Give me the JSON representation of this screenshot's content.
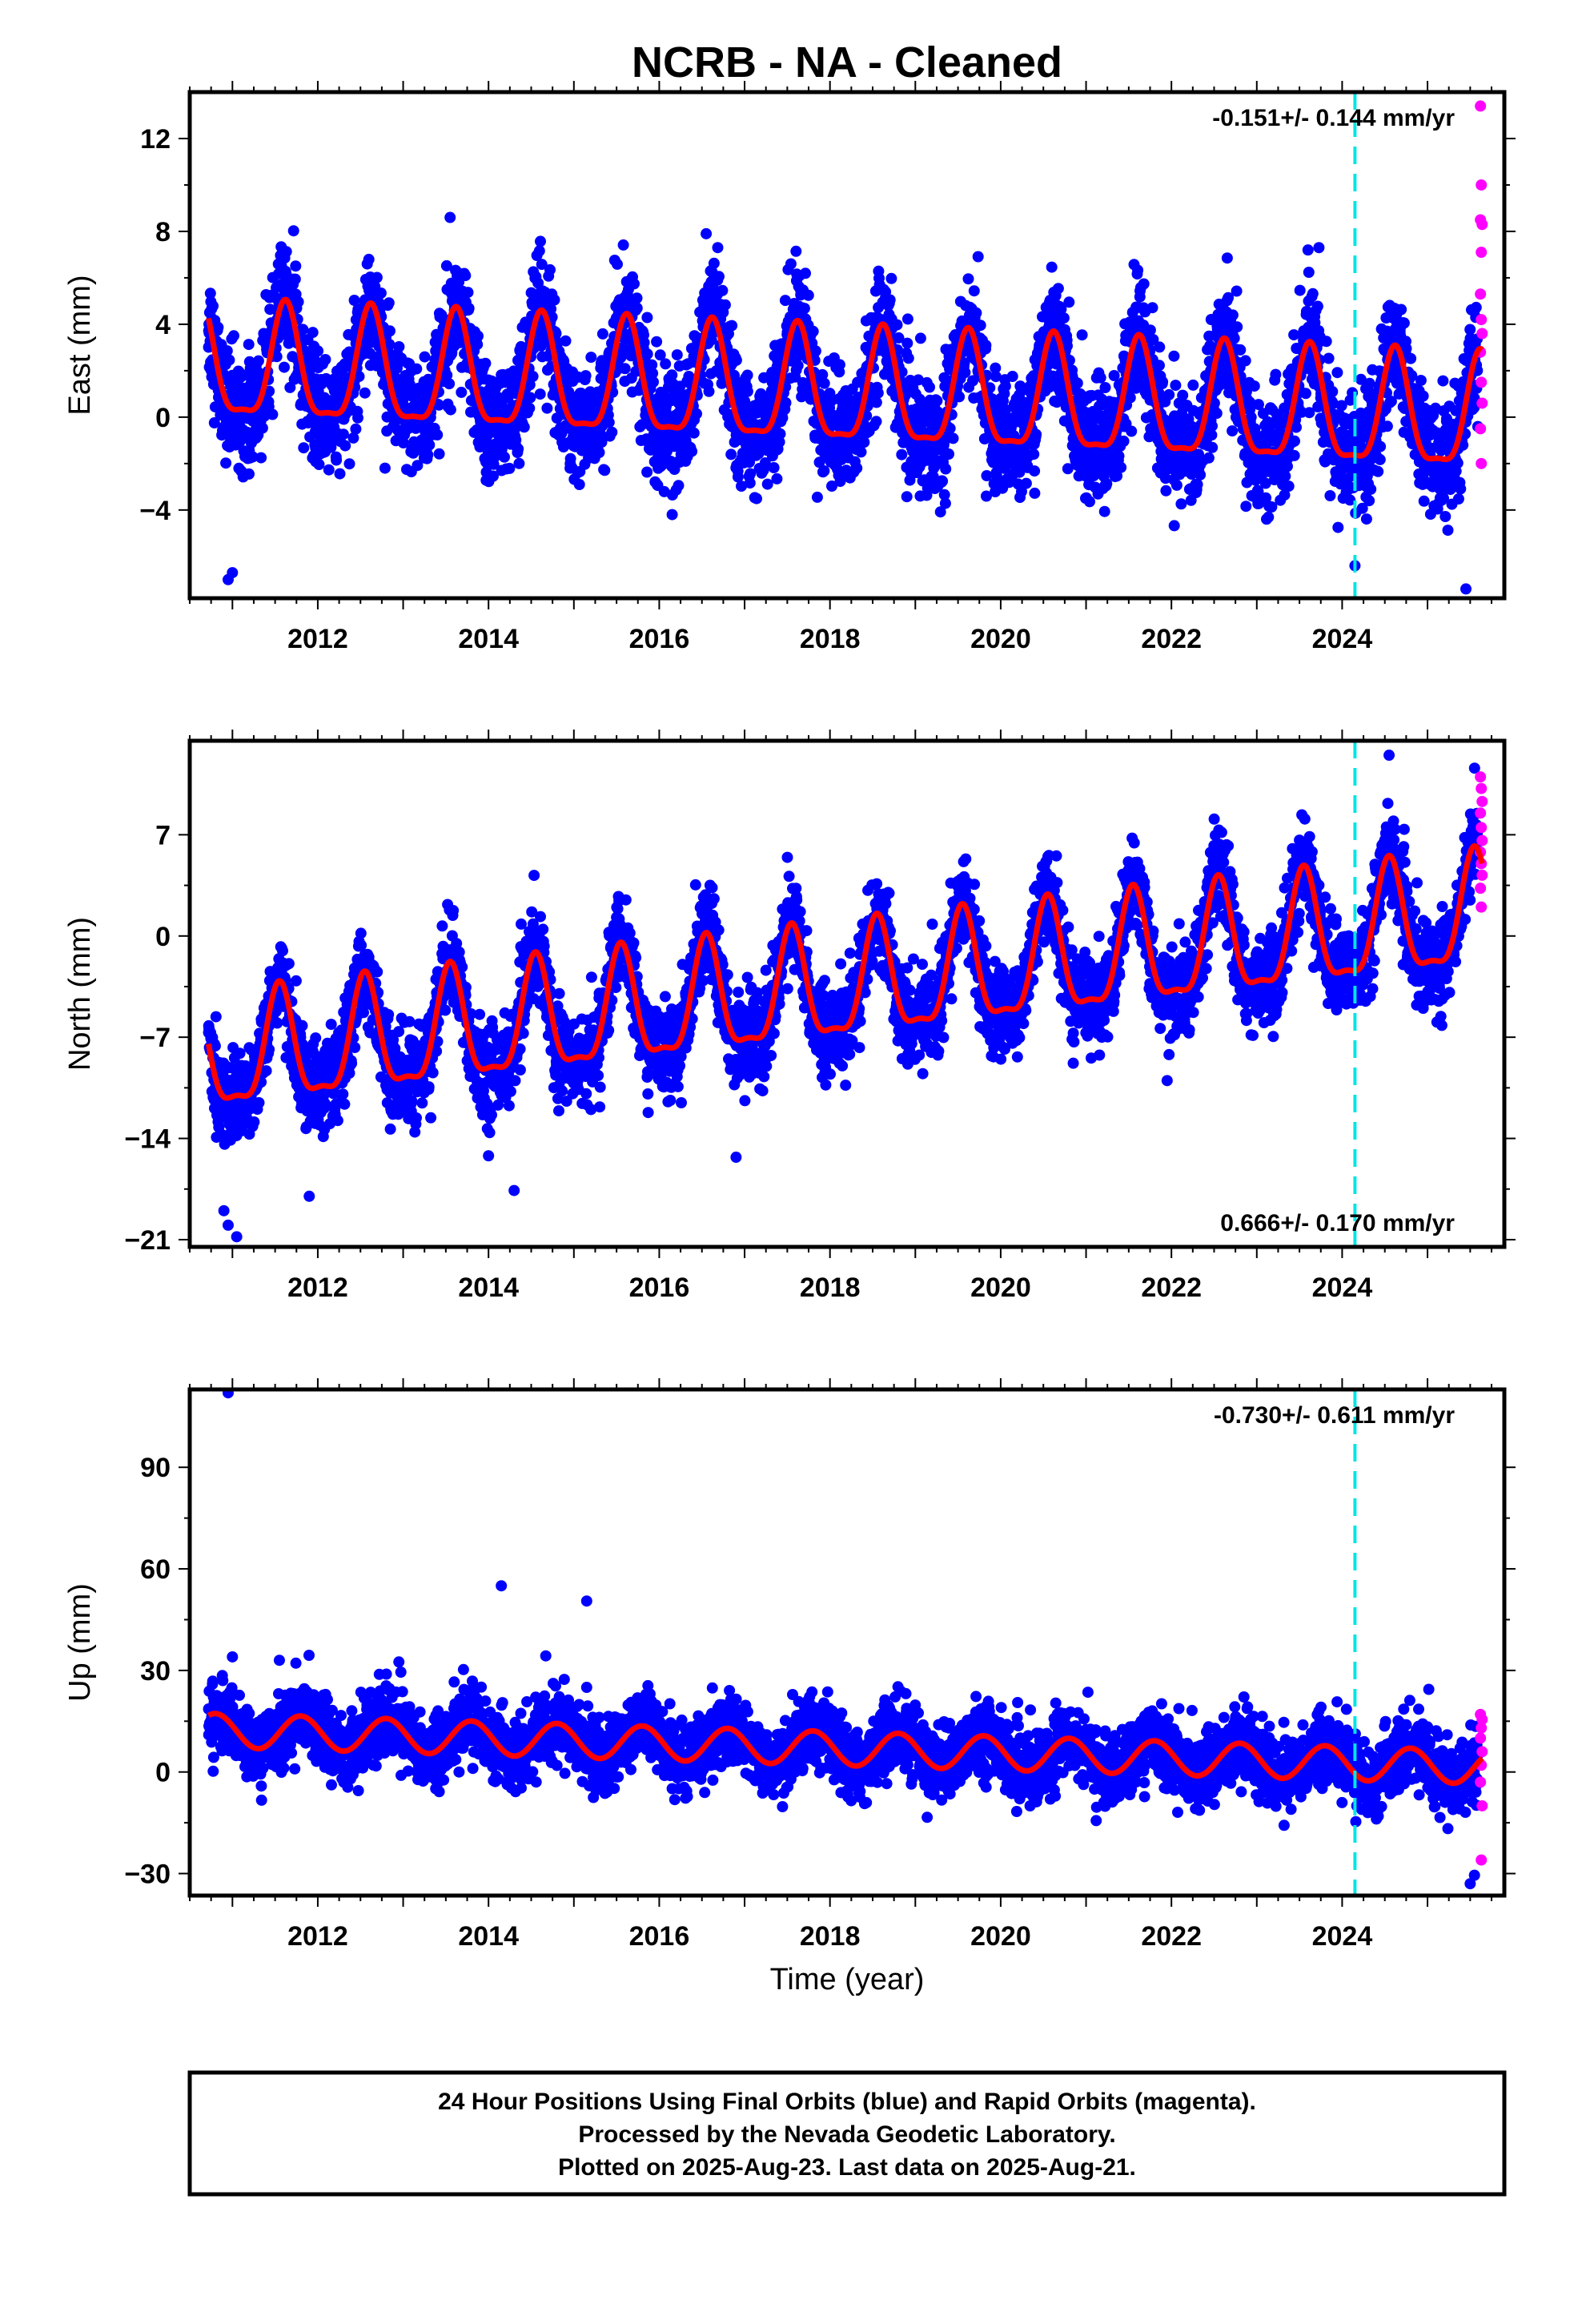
{
  "figure": {
    "title": "NCRB  - NA - Cleaned",
    "caption": [
      "24 Hour Positions Using Final Orbits (blue) and Rapid Orbits (magenta).",
      "Processed by the Nevada Geodetic Laboratory.",
      "Plotted on 2025-Aug-23. Last data on 2025-Aug-21."
    ],
    "colors": {
      "final_orbits": "#0000ff",
      "rapid_orbits": "#ff00ff",
      "model_fit": "#ff0000",
      "event_line": "#00e5e5",
      "frame": "#000000"
    },
    "time_axis_label": "Time (year)"
  },
  "chart_data": [
    {
      "type": "scatter",
      "panel": "east",
      "ylabel": "East (mm)",
      "xlabel": "",
      "xlim": [
        2010.5,
        2025.9
      ],
      "ylim": [
        -7.8,
        14.0
      ],
      "xticks": [
        2012,
        2014,
        2016,
        2018,
        2020,
        2022,
        2024
      ],
      "yticks": [
        -4,
        0,
        4,
        8,
        12
      ],
      "rate_label": "-0.151+/- 0.144 mm/yr",
      "rate_position": "top-right",
      "event_line_x": 2024.15,
      "data_span": [
        2010.72,
        2025.64
      ],
      "rapid_start": 2025.59,
      "fit": {
        "offset": 1.0,
        "trend_mm_per_yr": -0.151,
        "annual_amp": 2.4,
        "semiannual_amp": 0.7,
        "peak_phase_year_frac": 0.62
      },
      "scatter_sigma": 1.2,
      "outliers": [
        {
          "x": 2010.95,
          "y": -7.0
        },
        {
          "x": 2011.0,
          "y": -6.7
        },
        {
          "x": 2013.55,
          "y": 8.6
        },
        {
          "x": 2016.55,
          "y": 7.9
        },
        {
          "x": 2023.6,
          "y": 7.2
        },
        {
          "x": 2025.45,
          "y": -7.4
        },
        {
          "x": 2024.15,
          "y": -6.4
        }
      ],
      "rapid_points": [
        {
          "x": 2025.62,
          "y": 13.4
        },
        {
          "x": 2025.63,
          "y": 10.0
        },
        {
          "x": 2025.62,
          "y": 8.5
        },
        {
          "x": 2025.64,
          "y": 8.3
        },
        {
          "x": 2025.63,
          "y": 7.1
        },
        {
          "x": 2025.62,
          "y": 5.3
        },
        {
          "x": 2025.63,
          "y": 4.2
        },
        {
          "x": 2025.64,
          "y": 3.6
        },
        {
          "x": 2025.62,
          "y": 2.8
        },
        {
          "x": 2025.63,
          "y": 1.5
        },
        {
          "x": 2025.64,
          "y": 0.6
        },
        {
          "x": 2025.62,
          "y": -0.5
        },
        {
          "x": 2025.63,
          "y": -2.0
        }
      ]
    },
    {
      "type": "scatter",
      "panel": "north",
      "ylabel": "North (mm)",
      "xlabel": "",
      "xlim": [
        2010.5,
        2025.9
      ],
      "ylim": [
        -21.5,
        13.5
      ],
      "xticks": [
        2012,
        2014,
        2016,
        2018,
        2020,
        2022,
        2024
      ],
      "yticks": [
        -21,
        -14,
        -7,
        0,
        7
      ],
      "rate_label": "0.666+/- 0.170 mm/yr",
      "rate_position": "bottom-right",
      "event_line_x": 2024.15,
      "data_span": [
        2010.72,
        2025.64
      ],
      "rapid_start": 2025.59,
      "fit": {
        "offset": -3.8,
        "trend_mm_per_yr": 0.666,
        "annual_amp": 3.8,
        "semiannual_amp": 1.2,
        "peak_phase_year_frac": 0.55
      },
      "scatter_sigma": 1.5,
      "outliers": [
        {
          "x": 2010.9,
          "y": -19.0
        },
        {
          "x": 2010.95,
          "y": -20.0
        },
        {
          "x": 2011.05,
          "y": -20.8
        },
        {
          "x": 2011.9,
          "y": -18.0
        },
        {
          "x": 2014.0,
          "y": -15.2
        },
        {
          "x": 2014.3,
          "y": -17.6
        },
        {
          "x": 2016.9,
          "y": -15.3
        },
        {
          "x": 2015.2,
          "y": -12.0
        },
        {
          "x": 2020.85,
          "y": -8.8
        },
        {
          "x": 2021.95,
          "y": -10.0
        },
        {
          "x": 2024.55,
          "y": 12.5
        }
      ],
      "rapid_points": [
        {
          "x": 2025.62,
          "y": 11.0
        },
        {
          "x": 2025.63,
          "y": 10.2
        },
        {
          "x": 2025.64,
          "y": 9.3
        },
        {
          "x": 2025.62,
          "y": 8.5
        },
        {
          "x": 2025.63,
          "y": 7.5
        },
        {
          "x": 2025.64,
          "y": 6.6
        },
        {
          "x": 2025.62,
          "y": 5.8
        },
        {
          "x": 2025.63,
          "y": 5.0
        },
        {
          "x": 2025.64,
          "y": 4.2
        },
        {
          "x": 2025.62,
          "y": 3.3
        },
        {
          "x": 2025.63,
          "y": 2.0
        }
      ]
    },
    {
      "type": "scatter",
      "panel": "up",
      "ylabel": "Up (mm)",
      "xlabel": "Time (year)",
      "xlim": [
        2010.5,
        2025.9
      ],
      "ylim": [
        -36.5,
        113.0
      ],
      "xticks": [
        2012,
        2014,
        2016,
        2018,
        2020,
        2022,
        2024
      ],
      "yticks": [
        -30,
        0,
        30,
        60,
        90
      ],
      "rate_label": "-0.730+/- 0.611 mm/yr",
      "rate_position": "top-right",
      "event_line_x": 2024.15,
      "data_span": [
        2010.72,
        2025.64
      ],
      "rapid_start": 2025.59,
      "fit": {
        "offset": 7.0,
        "trend_mm_per_yr": -0.73,
        "annual_amp": 5.0,
        "semiannual_amp": 0.0,
        "peak_phase_year_frac": 0.8
      },
      "scatter_sigma": 5.0,
      "outliers": [
        {
          "x": 2010.95,
          "y": 112.0
        },
        {
          "x": 2014.15,
          "y": 55.0
        },
        {
          "x": 2015.15,
          "y": 50.5
        },
        {
          "x": 2011.0,
          "y": 34.0
        },
        {
          "x": 2011.55,
          "y": 33.0
        },
        {
          "x": 2012.95,
          "y": 32.5
        },
        {
          "x": 2015.15,
          "y": 25.0
        },
        {
          "x": 2025.5,
          "y": -33.0
        },
        {
          "x": 2025.55,
          "y": -30.5
        }
      ],
      "rapid_points": [
        {
          "x": 2025.62,
          "y": 17.0
        },
        {
          "x": 2025.64,
          "y": 15.5
        },
        {
          "x": 2025.63,
          "y": 13.0
        },
        {
          "x": 2025.62,
          "y": 10.0
        },
        {
          "x": 2025.64,
          "y": 6.0
        },
        {
          "x": 2025.63,
          "y": 2.0
        },
        {
          "x": 2025.62,
          "y": -3.0
        },
        {
          "x": 2025.64,
          "y": -10.0
        },
        {
          "x": 2025.63,
          "y": -26.0
        }
      ]
    }
  ]
}
